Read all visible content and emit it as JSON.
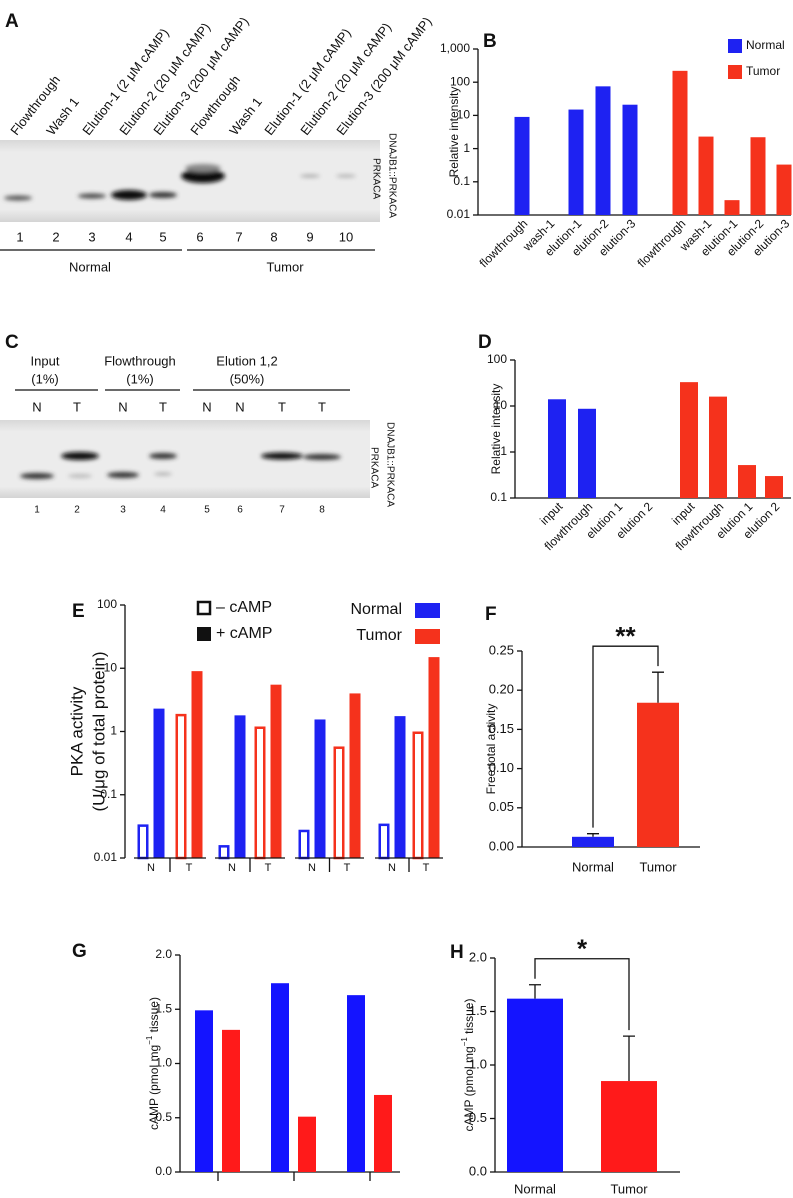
{
  "blots": [
    {
      "label": "A",
      "lanes": [
        "Flowthrough",
        "Wash 1",
        "Elution-1 (2 μM cAMP)",
        "Elution-2 (20 μM cAMP)",
        "Elution-3 (200 μM cAMP)",
        "Flowthrough",
        "Wash 1",
        "Elution-1 (2 μM cAMP)",
        "Elution-2 (20 μM cAMP)",
        "Elution-3 (200 μM cAMP)"
      ],
      "lane_numbers": [
        1,
        2,
        3,
        4,
        5,
        6,
        7,
        8,
        9,
        10
      ],
      "groups": [
        "Normal",
        "Tumor"
      ],
      "band_labels": [
        "DNAJB1::PRKACA",
        "PRKACA"
      ]
    },
    {
      "label": "C",
      "headers": [
        {
          "name": "Input",
          "amount": "(1%)"
        },
        {
          "name": "Flowthrough",
          "amount": "(1%)"
        },
        {
          "name": "Elution 1,2",
          "amount": "(50%)"
        }
      ],
      "lanes": [
        "N",
        "T",
        "N",
        "T",
        "N",
        "N",
        "T",
        "T"
      ],
      "lane_numbers": [
        1,
        2,
        3,
        4,
        5,
        6,
        7,
        8
      ],
      "band_labels": [
        "DNAJB1::PRKACA",
        "PRKACA"
      ]
    }
  ],
  "chart_data": [
    {
      "type": "bar",
      "label": "B",
      "ylabel": "Relative intensity",
      "log": true,
      "categories": [
        "flowthrough",
        "wash-1",
        "elution-1",
        "elution-2",
        "elution-3",
        "flowthrough",
        "wash-1",
        "elution-1",
        "elution-2",
        "elution-3"
      ],
      "series": [
        {
          "name": "Normal",
          "color": "#1e22f2",
          "values": [
            9,
            null,
            15,
            75,
            21,
            null,
            null,
            null,
            null,
            null
          ]
        },
        {
          "name": "Tumor",
          "color": "#f5321c",
          "values": [
            null,
            null,
            null,
            null,
            null,
            220,
            2.3,
            0.028,
            2.2,
            0.33
          ]
        }
      ],
      "ylim": [
        0.01,
        1000
      ],
      "yticks": [
        0.01,
        0.1,
        1,
        10,
        100,
        {
          "value": 1000,
          "label": "1,000"
        }
      ],
      "legend": "top-right"
    },
    {
      "type": "bar",
      "label": "D",
      "ylabel": "Relative intensity",
      "log": true,
      "categories": [
        "input",
        "flowthrough",
        "elution 1",
        "elution 2",
        "input",
        "flowthrough",
        "elution 1",
        "elution 2"
      ],
      "series": [
        {
          "color": "#1e22f2",
          "values": [
            14,
            8.7,
            null,
            null,
            null,
            null,
            null,
            null
          ]
        },
        {
          "color": "#f5321c",
          "values": [
            null,
            null,
            null,
            null,
            33,
            16,
            0.52,
            0.3
          ]
        }
      ],
      "ylim": [
        0.1,
        100
      ],
      "yticks": [
        0.1,
        1,
        10,
        100
      ]
    },
    {
      "type": "bar",
      "label": "E",
      "ylabel": "PKA activity",
      "ylabel_units": "(U/μg of total protein)",
      "log": true,
      "categories": [
        "N",
        "T",
        "N",
        "T",
        "N",
        "T",
        "N",
        "T"
      ],
      "category_colors": [
        "#1e22f2",
        "#f5321c",
        "#1e22f2",
        "#f5321c",
        "#1e22f2",
        "#f5321c",
        "#1e22f2",
        "#f5321c"
      ],
      "series": [
        {
          "name": "– cAMP",
          "style": "hollow",
          "values": [
            0.034,
            1.9,
            0.016,
            1.2,
            0.028,
            0.58,
            0.035,
            1.0
          ]
        },
        {
          "name": "+ cAMP",
          "style": "filled",
          "values": [
            2.3,
            9,
            1.8,
            5.5,
            1.55,
            4.0,
            1.75,
            15
          ]
        }
      ],
      "color_legend": [
        {
          "name": "Normal",
          "color": "#1e22f2"
        },
        {
          "name": "Tumor",
          "color": "#f5321c"
        }
      ],
      "ylim": [
        0.01,
        100
      ],
      "yticks": [
        0.01,
        0.1,
        1,
        10,
        100
      ]
    },
    {
      "type": "bar",
      "label": "F",
      "ylabel": "Free:total activity",
      "categories": [
        "Normal",
        "Tumor"
      ],
      "category_colors": [
        "#1e22f2",
        "#f5321c"
      ],
      "series": [
        {
          "values": [
            0.013,
            0.184
          ],
          "errors": [
            0.004,
            0.039
          ]
        }
      ],
      "significance": "**",
      "ylim": [
        0,
        0.25
      ],
      "yticks": [
        {
          "value": 0,
          "label": "0.00"
        },
        0.05,
        {
          "value": 0.1,
          "label": "0.10"
        },
        0.15,
        {
          "value": 0.2,
          "label": "0.20"
        },
        0.25
      ]
    },
    {
      "type": "bar",
      "label": "G",
      "ylabel": [
        "cAMP (pmol mg",
        "−1",
        " tissue)"
      ],
      "categories": [
        null,
        null,
        null
      ],
      "series": [
        {
          "color": "#1414ff",
          "values": [
            1.49,
            1.74,
            1.63
          ]
        },
        {
          "color": "#ff1a1a",
          "values": [
            1.31,
            0.51,
            0.71
          ]
        }
      ],
      "ylim": [
        0,
        2
      ],
      "yticks": [
        {
          "value": 0,
          "label": "0.0"
        },
        0.5,
        {
          "value": 1,
          "label": "1.0"
        },
        1.5,
        {
          "value": 2,
          "label": "2.0"
        }
      ]
    },
    {
      "type": "bar",
      "label": "H",
      "ylabel": [
        "cAMP (pmol mg",
        "−1",
        " tissue)"
      ],
      "categories": [
        "Normal",
        "Tumor"
      ],
      "category_colors": [
        "#1414ff",
        "#ff1a1a"
      ],
      "series": [
        {
          "values": [
            1.62,
            0.85
          ],
          "errors": [
            0.13,
            0.42
          ]
        }
      ],
      "significance": "*",
      "ylim": [
        0,
        2
      ],
      "yticks": [
        {
          "value": 0,
          "label": "0.0"
        },
        0.5,
        {
          "value": 1,
          "label": "1.0"
        },
        1.5,
        {
          "value": 2,
          "label": "2.0"
        }
      ]
    }
  ]
}
